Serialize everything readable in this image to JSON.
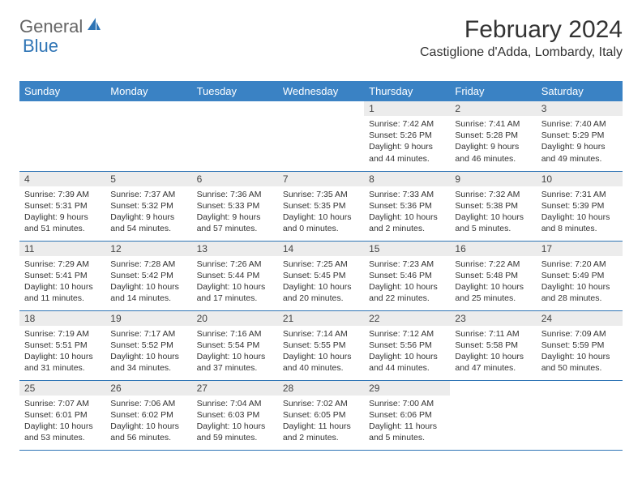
{
  "logo": {
    "general": "General",
    "blue": "Blue"
  },
  "title": "February 2024",
  "location": "Castiglione d'Adda, Lombardy, Italy",
  "colors": {
    "header_bg": "#3a82c4",
    "header_text": "#ffffff",
    "border": "#2e74b5",
    "daynum_bg": "#ececec",
    "logo_blue": "#2e74b5",
    "text": "#333333"
  },
  "headers": [
    "Sunday",
    "Monday",
    "Tuesday",
    "Wednesday",
    "Thursday",
    "Friday",
    "Saturday"
  ],
  "weeks": [
    [
      null,
      null,
      null,
      null,
      {
        "n": "1",
        "sr": "Sunrise: 7:42 AM",
        "ss": "Sunset: 5:26 PM",
        "dl1": "Daylight: 9 hours",
        "dl2": "and 44 minutes."
      },
      {
        "n": "2",
        "sr": "Sunrise: 7:41 AM",
        "ss": "Sunset: 5:28 PM",
        "dl1": "Daylight: 9 hours",
        "dl2": "and 46 minutes."
      },
      {
        "n": "3",
        "sr": "Sunrise: 7:40 AM",
        "ss": "Sunset: 5:29 PM",
        "dl1": "Daylight: 9 hours",
        "dl2": "and 49 minutes."
      }
    ],
    [
      {
        "n": "4",
        "sr": "Sunrise: 7:39 AM",
        "ss": "Sunset: 5:31 PM",
        "dl1": "Daylight: 9 hours",
        "dl2": "and 51 minutes."
      },
      {
        "n": "5",
        "sr": "Sunrise: 7:37 AM",
        "ss": "Sunset: 5:32 PM",
        "dl1": "Daylight: 9 hours",
        "dl2": "and 54 minutes."
      },
      {
        "n": "6",
        "sr": "Sunrise: 7:36 AM",
        "ss": "Sunset: 5:33 PM",
        "dl1": "Daylight: 9 hours",
        "dl2": "and 57 minutes."
      },
      {
        "n": "7",
        "sr": "Sunrise: 7:35 AM",
        "ss": "Sunset: 5:35 PM",
        "dl1": "Daylight: 10 hours",
        "dl2": "and 0 minutes."
      },
      {
        "n": "8",
        "sr": "Sunrise: 7:33 AM",
        "ss": "Sunset: 5:36 PM",
        "dl1": "Daylight: 10 hours",
        "dl2": "and 2 minutes."
      },
      {
        "n": "9",
        "sr": "Sunrise: 7:32 AM",
        "ss": "Sunset: 5:38 PM",
        "dl1": "Daylight: 10 hours",
        "dl2": "and 5 minutes."
      },
      {
        "n": "10",
        "sr": "Sunrise: 7:31 AM",
        "ss": "Sunset: 5:39 PM",
        "dl1": "Daylight: 10 hours",
        "dl2": "and 8 minutes."
      }
    ],
    [
      {
        "n": "11",
        "sr": "Sunrise: 7:29 AM",
        "ss": "Sunset: 5:41 PM",
        "dl1": "Daylight: 10 hours",
        "dl2": "and 11 minutes."
      },
      {
        "n": "12",
        "sr": "Sunrise: 7:28 AM",
        "ss": "Sunset: 5:42 PM",
        "dl1": "Daylight: 10 hours",
        "dl2": "and 14 minutes."
      },
      {
        "n": "13",
        "sr": "Sunrise: 7:26 AM",
        "ss": "Sunset: 5:44 PM",
        "dl1": "Daylight: 10 hours",
        "dl2": "and 17 minutes."
      },
      {
        "n": "14",
        "sr": "Sunrise: 7:25 AM",
        "ss": "Sunset: 5:45 PM",
        "dl1": "Daylight: 10 hours",
        "dl2": "and 20 minutes."
      },
      {
        "n": "15",
        "sr": "Sunrise: 7:23 AM",
        "ss": "Sunset: 5:46 PM",
        "dl1": "Daylight: 10 hours",
        "dl2": "and 22 minutes."
      },
      {
        "n": "16",
        "sr": "Sunrise: 7:22 AM",
        "ss": "Sunset: 5:48 PM",
        "dl1": "Daylight: 10 hours",
        "dl2": "and 25 minutes."
      },
      {
        "n": "17",
        "sr": "Sunrise: 7:20 AM",
        "ss": "Sunset: 5:49 PM",
        "dl1": "Daylight: 10 hours",
        "dl2": "and 28 minutes."
      }
    ],
    [
      {
        "n": "18",
        "sr": "Sunrise: 7:19 AM",
        "ss": "Sunset: 5:51 PM",
        "dl1": "Daylight: 10 hours",
        "dl2": "and 31 minutes."
      },
      {
        "n": "19",
        "sr": "Sunrise: 7:17 AM",
        "ss": "Sunset: 5:52 PM",
        "dl1": "Daylight: 10 hours",
        "dl2": "and 34 minutes."
      },
      {
        "n": "20",
        "sr": "Sunrise: 7:16 AM",
        "ss": "Sunset: 5:54 PM",
        "dl1": "Daylight: 10 hours",
        "dl2": "and 37 minutes."
      },
      {
        "n": "21",
        "sr": "Sunrise: 7:14 AM",
        "ss": "Sunset: 5:55 PM",
        "dl1": "Daylight: 10 hours",
        "dl2": "and 40 minutes."
      },
      {
        "n": "22",
        "sr": "Sunrise: 7:12 AM",
        "ss": "Sunset: 5:56 PM",
        "dl1": "Daylight: 10 hours",
        "dl2": "and 44 minutes."
      },
      {
        "n": "23",
        "sr": "Sunrise: 7:11 AM",
        "ss": "Sunset: 5:58 PM",
        "dl1": "Daylight: 10 hours",
        "dl2": "and 47 minutes."
      },
      {
        "n": "24",
        "sr": "Sunrise: 7:09 AM",
        "ss": "Sunset: 5:59 PM",
        "dl1": "Daylight: 10 hours",
        "dl2": "and 50 minutes."
      }
    ],
    [
      {
        "n": "25",
        "sr": "Sunrise: 7:07 AM",
        "ss": "Sunset: 6:01 PM",
        "dl1": "Daylight: 10 hours",
        "dl2": "and 53 minutes."
      },
      {
        "n": "26",
        "sr": "Sunrise: 7:06 AM",
        "ss": "Sunset: 6:02 PM",
        "dl1": "Daylight: 10 hours",
        "dl2": "and 56 minutes."
      },
      {
        "n": "27",
        "sr": "Sunrise: 7:04 AM",
        "ss": "Sunset: 6:03 PM",
        "dl1": "Daylight: 10 hours",
        "dl2": "and 59 minutes."
      },
      {
        "n": "28",
        "sr": "Sunrise: 7:02 AM",
        "ss": "Sunset: 6:05 PM",
        "dl1": "Daylight: 11 hours",
        "dl2": "and 2 minutes."
      },
      {
        "n": "29",
        "sr": "Sunrise: 7:00 AM",
        "ss": "Sunset: 6:06 PM",
        "dl1": "Daylight: 11 hours",
        "dl2": "and 5 minutes."
      },
      null,
      null
    ]
  ]
}
